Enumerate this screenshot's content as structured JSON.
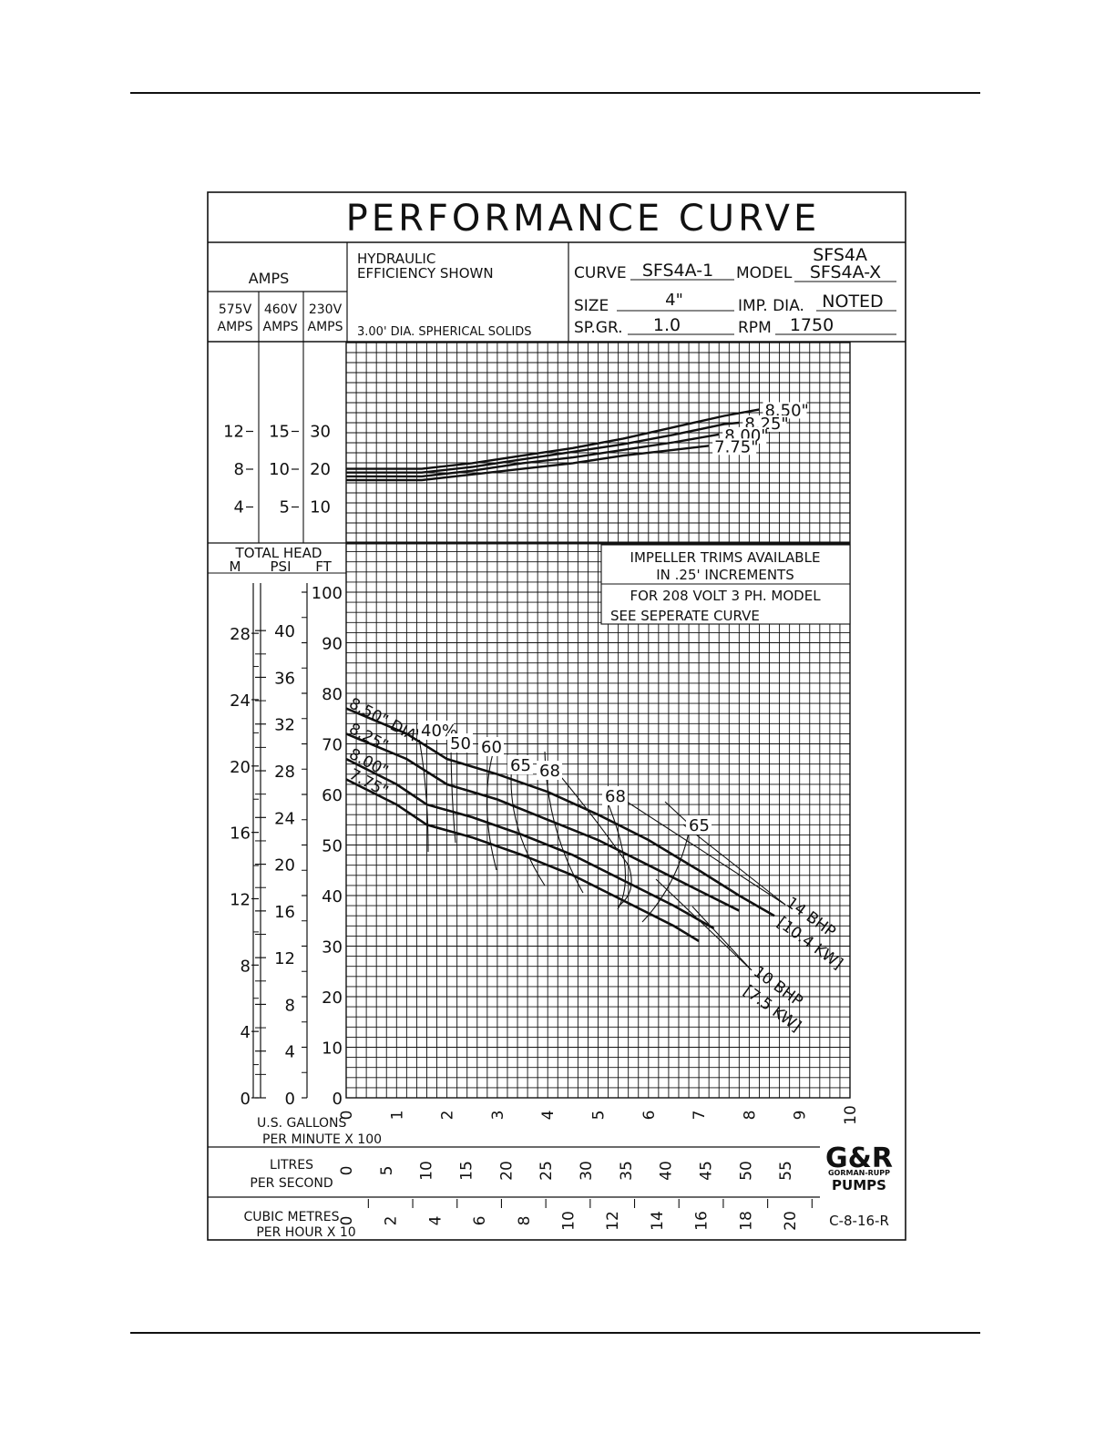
{
  "header": {
    "title": "PERFORMANCE CURVE",
    "amps_label": "AMPS",
    "amps_cols": [
      "575V AMPS",
      "460V AMPS",
      "230V AMPS"
    ],
    "hydraulic_line1": "HYDRAULIC",
    "hydraulic_line2": "EFFICIENCY SHOWN",
    "solids": "3.00' DIA. SPHERICAL SOLIDS",
    "curve_label": "CURVE",
    "curve_value": "SFS4A-1",
    "model_label": "MODEL",
    "model_value_top": "SFS4A",
    "model_value": "SFS4A-X",
    "size_label": "SIZE",
    "size_value": "4\"",
    "imp_dia_label": "IMP. DIA.",
    "imp_dia_value": "NOTED",
    "spgr_label": "SP.GR.",
    "spgr_value": "1.0",
    "rpm_label": "RPM",
    "rpm_value": "1750"
  },
  "notes": {
    "trims_line1": "IMPELLER TRIMS AVAILABLE",
    "trims_line2": "IN .25' INCREMENTS",
    "volt_line1": "FOR 208 VOLT 3 PH. MODEL",
    "volt_line2": "SEE SEPERATE CURVE"
  },
  "head_axis_title": "TOTAL HEAD",
  "head_units": [
    "M",
    "PSI",
    "FT"
  ],
  "axis_x": {
    "gpm_label_1": "U.S. GALLONS",
    "gpm_label_2": "PER MINUTE X 100",
    "lps_label_1": "LITRES",
    "lps_label_2": "PER SECOND",
    "m3h_label_1": "CUBIC METRES",
    "m3h_label_2": "PER HOUR X 10"
  },
  "logo": {
    "brand": "G&R",
    "line1": "GORMAN-RUPP",
    "line2": "PUMPS"
  },
  "drawing_number": "C-8-16-R",
  "colors": {
    "ink": "#111111",
    "paper": "#ffffff"
  },
  "chart_data": [
    {
      "type": "line",
      "name": "amps",
      "x_unit": "U.S. gallons per minute x 100",
      "xlim": [
        0,
        10
      ],
      "ylim_230v": [
        0,
        40
      ],
      "y_axes": [
        {
          "label": "575V AMPS",
          "ticks": [
            4,
            8,
            12
          ]
        },
        {
          "label": "460V AMPS",
          "ticks": [
            5,
            10,
            15
          ]
        },
        {
          "label": "230V AMPS",
          "ticks": [
            10,
            20,
            30
          ]
        }
      ],
      "grid": true,
      "series": [
        {
          "name": "8.50\"",
          "x": [
            0,
            1.5,
            2.5,
            3.5,
            4.5,
            5.5,
            6.5,
            7.5,
            8.2
          ],
          "y": [
            20.1,
            20.1,
            21.6,
            23.6,
            25.6,
            28.1,
            31.1,
            34.1,
            35.8
          ]
        },
        {
          "name": "8.25\"",
          "x": [
            0,
            1.5,
            2.5,
            3.5,
            4.5,
            5.5,
            6.5,
            7.5,
            7.8
          ],
          "y": [
            19.1,
            19.1,
            20.6,
            22.6,
            24.6,
            26.6,
            29.1,
            31.9,
            32.3
          ]
        },
        {
          "name": "8.00\"",
          "x": [
            0,
            1.5,
            2.5,
            3.5,
            4.5,
            5.5,
            6.5,
            7.4
          ],
          "y": [
            18.1,
            18.1,
            19.6,
            21.6,
            23.1,
            25.1,
            27.1,
            29.2
          ]
        },
        {
          "name": "7.75\"",
          "x": [
            0,
            1.5,
            2.5,
            3.5,
            4.5,
            5.5,
            6.5,
            7.2
          ],
          "y": [
            17.1,
            17.1,
            18.6,
            20.1,
            21.6,
            23.6,
            25.1,
            26.2
          ]
        }
      ]
    },
    {
      "type": "line",
      "name": "head",
      "x_unit": "U.S. gallons per minute x 100",
      "y_unit": "FT",
      "xlim": [
        0,
        10
      ],
      "ylim": [
        0,
        100
      ],
      "grid": true,
      "x_ticks": [
        0,
        1,
        2,
        3,
        4,
        5,
        6,
        7,
        8,
        9,
        10
      ],
      "y_ticks_ft": [
        0,
        10,
        20,
        30,
        40,
        50,
        60,
        70,
        80,
        90,
        100
      ],
      "y_ticks_psi": [
        0,
        4,
        8,
        12,
        16,
        20,
        24,
        28,
        32,
        36,
        40
      ],
      "y_ticks_m": [
        0,
        4,
        8,
        12,
        16,
        20,
        24,
        28
      ],
      "lps_ticks": [
        0,
        5,
        10,
        15,
        20,
        25,
        30,
        35,
        40,
        45,
        50,
        55
      ],
      "m3h_ticks": [
        0,
        2,
        4,
        6,
        8,
        10,
        12,
        14,
        16,
        18,
        20
      ],
      "series": [
        {
          "name": "8.50\" DIA",
          "x": [
            0,
            1.2,
            2,
            3,
            4,
            5,
            6,
            7,
            7.8,
            8.5
          ],
          "y": [
            77,
            72,
            67,
            64,
            60.5,
            56,
            51,
            45,
            40,
            36
          ]
        },
        {
          "name": "8.25\"",
          "x": [
            0,
            1.2,
            2,
            3,
            4,
            5,
            6,
            7,
            7.8
          ],
          "y": [
            72,
            67,
            62,
            59,
            55,
            51,
            46,
            41,
            37
          ]
        },
        {
          "name": "8.00\"",
          "x": [
            0,
            1,
            1.6,
            2.5,
            3.5,
            4.5,
            5.5,
            6.5,
            7.3
          ],
          "y": [
            67,
            62,
            58,
            55.5,
            52,
            48,
            43,
            38,
            33.5
          ]
        },
        {
          "name": "7.75\"",
          "x": [
            0,
            1,
            1.6,
            2.5,
            3.5,
            4.5,
            5.5,
            6.5,
            7.0
          ],
          "y": [
            63,
            58,
            54,
            51.5,
            48,
            44,
            39,
            34,
            31
          ]
        }
      ],
      "efficiency_labels": [
        "40%",
        "50",
        "60",
        "65",
        "68",
        "68",
        "65"
      ],
      "bhp_labels": [
        "14 BHP",
        "[10.4 KW]",
        "10 BHP",
        "[7.5 KW]"
      ]
    }
  ]
}
